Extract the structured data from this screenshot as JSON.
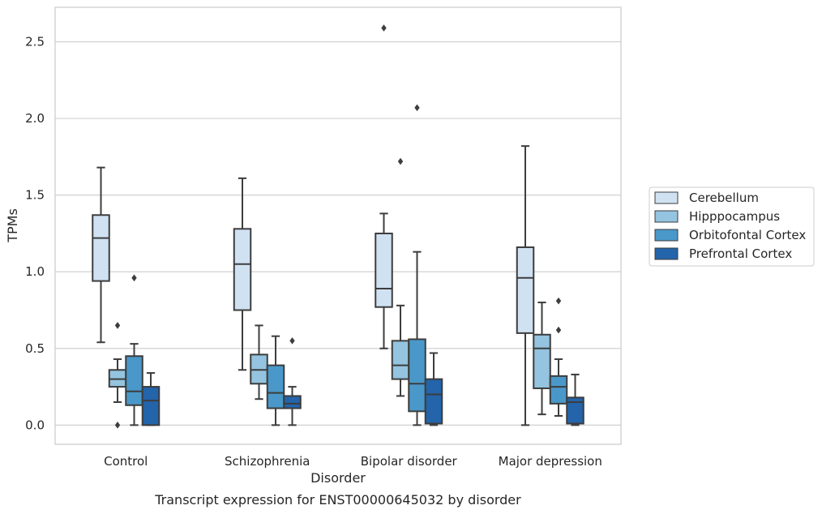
{
  "chart_data": {
    "type": "box",
    "caption": "Transcript expression for ENST00000645032 by disorder",
    "xlabel": "Disorder",
    "ylabel": "TPMs",
    "ylim": [
      -0.125,
      2.725
    ],
    "yticks": [
      0.0,
      0.5,
      1.0,
      1.5,
      2.0,
      2.5
    ],
    "ytick_labels": [
      "0.0",
      "0.5",
      "1.0",
      "1.5",
      "2.0",
      "2.5"
    ],
    "grid": "horizontal",
    "legend_position": "right",
    "categories": [
      "Control",
      "Schizophrenia",
      "Bipolar disorder",
      "Major depression"
    ],
    "series": [
      {
        "name": "Cerebellum",
        "color": "#d0e1f2",
        "boxes": [
          {
            "whisker_low": 0.54,
            "q1": 0.94,
            "median": 1.22,
            "q3": 1.37,
            "whisker_high": 1.68,
            "outliers": []
          },
          {
            "whisker_low": 0.36,
            "q1": 0.75,
            "median": 1.05,
            "q3": 1.28,
            "whisker_high": 1.61,
            "outliers": []
          },
          {
            "whisker_low": 0.5,
            "q1": 0.77,
            "median": 0.89,
            "q3": 1.25,
            "whisker_high": 1.38,
            "outliers": [
              2.59
            ]
          },
          {
            "whisker_low": 0.0,
            "q1": 0.6,
            "median": 0.96,
            "q3": 1.16,
            "whisker_high": 1.82,
            "outliers": []
          }
        ]
      },
      {
        "name": "Hipppocampus",
        "color": "#94c4df",
        "boxes": [
          {
            "whisker_low": 0.15,
            "q1": 0.25,
            "median": 0.3,
            "q3": 0.36,
            "whisker_high": 0.43,
            "outliers": [
              0.0,
              0.65
            ]
          },
          {
            "whisker_low": 0.17,
            "q1": 0.27,
            "median": 0.36,
            "q3": 0.46,
            "whisker_high": 0.65,
            "outliers": []
          },
          {
            "whisker_low": 0.19,
            "q1": 0.3,
            "median": 0.39,
            "q3": 0.55,
            "whisker_high": 0.78,
            "outliers": [
              1.72
            ]
          },
          {
            "whisker_low": 0.07,
            "q1": 0.24,
            "median": 0.5,
            "q3": 0.59,
            "whisker_high": 0.8,
            "outliers": []
          }
        ]
      },
      {
        "name": "Orbitofontal Cortex",
        "color": "#4a98c9",
        "boxes": [
          {
            "whisker_low": 0.0,
            "q1": 0.13,
            "median": 0.22,
            "q3": 0.45,
            "whisker_high": 0.53,
            "outliers": [
              0.96
            ]
          },
          {
            "whisker_low": 0.0,
            "q1": 0.11,
            "median": 0.21,
            "q3": 0.39,
            "whisker_high": 0.58,
            "outliers": []
          },
          {
            "whisker_low": 0.0,
            "q1": 0.09,
            "median": 0.27,
            "q3": 0.56,
            "whisker_high": 1.13,
            "outliers": [
              2.07
            ]
          },
          {
            "whisker_low": 0.06,
            "q1": 0.14,
            "median": 0.25,
            "q3": 0.32,
            "whisker_high": 0.43,
            "outliers": [
              0.62,
              0.81
            ]
          }
        ]
      },
      {
        "name": "Prefrontal Cortex",
        "color": "#2364aa",
        "boxes": [
          {
            "whisker_low": 0.0,
            "q1": 0.0,
            "median": 0.16,
            "q3": 0.25,
            "whisker_high": 0.34,
            "outliers": []
          },
          {
            "whisker_low": 0.0,
            "q1": 0.11,
            "median": 0.14,
            "q3": 0.19,
            "whisker_high": 0.25,
            "outliers": [
              0.55
            ]
          },
          {
            "whisker_low": 0.0,
            "q1": 0.01,
            "median": 0.2,
            "q3": 0.3,
            "whisker_high": 0.47,
            "outliers": []
          },
          {
            "whisker_low": 0.0,
            "q1": 0.01,
            "median": 0.15,
            "q3": 0.18,
            "whisker_high": 0.33,
            "outliers": []
          }
        ]
      }
    ]
  }
}
